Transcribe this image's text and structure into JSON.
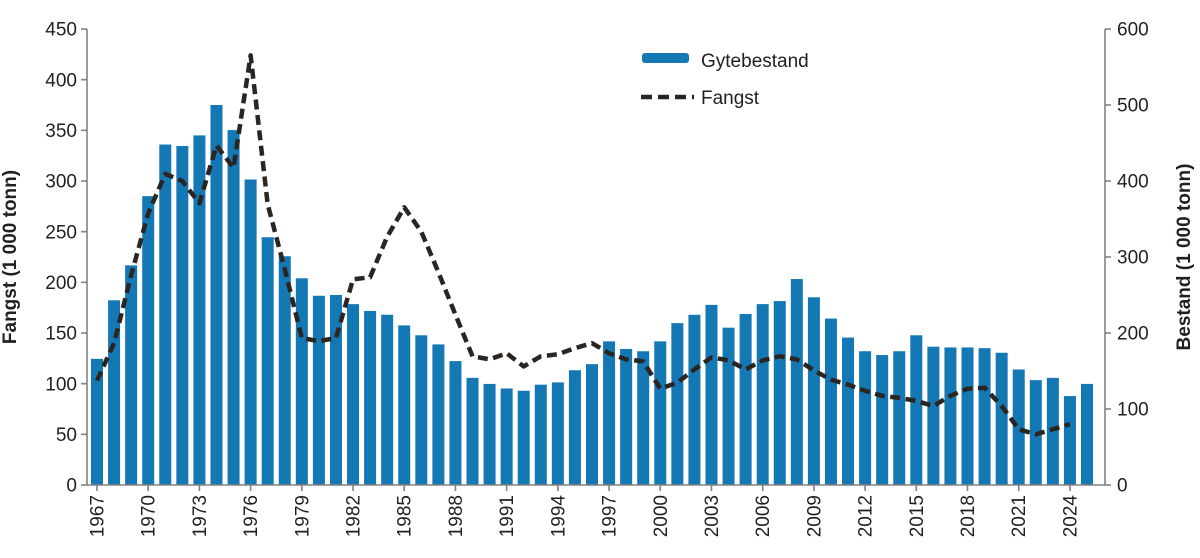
{
  "figure": {
    "legend": {
      "bar_label": "Gytebestand",
      "line_label": "Fangst"
    },
    "left_axis_title": "Fangst (1 000 tonn)",
    "right_axis_title": "Bestand (1 000 tonn)"
  },
  "colors": {
    "bar": "#1478b4",
    "line": "#2b2521",
    "axis": "#808285",
    "text": "#231f20"
  },
  "chart_data": {
    "type": "bar+line",
    "title": "",
    "x_years": [
      1967,
      1968,
      1969,
      1970,
      1971,
      1972,
      1973,
      1974,
      1975,
      1976,
      1977,
      1978,
      1979,
      1980,
      1981,
      1982,
      1983,
      1984,
      1985,
      1986,
      1987,
      1988,
      1989,
      1990,
      1991,
      1992,
      1993,
      1994,
      1995,
      1996,
      1997,
      1998,
      1999,
      2000,
      2001,
      2002,
      2003,
      2004,
      2005,
      2006,
      2007,
      2008,
      2009,
      2010,
      2011,
      2012,
      2013,
      2014,
      2015,
      2016,
      2017,
      2018,
      2019,
      2020,
      2021,
      2022,
      2023,
      2024,
      2025
    ],
    "series": [
      {
        "name": "Gytebestand",
        "type": "bar",
        "axis": "right",
        "values": [
          166,
          243,
          289,
          380,
          448,
          446,
          460,
          500,
          467,
          402,
          326,
          301,
          272,
          249,
          250,
          238,
          229,
          224,
          210,
          197,
          185,
          163,
          141,
          133,
          127,
          124,
          132,
          135,
          151,
          159,
          189,
          179,
          176,
          189,
          213,
          224,
          237,
          207,
          225,
          238,
          242,
          271,
          247,
          219,
          194,
          176,
          171,
          176,
          197,
          182,
          181,
          181,
          180,
          174,
          152,
          138,
          141,
          117,
          133
        ]
      },
      {
        "name": "Fangst",
        "type": "line",
        "dashed": true,
        "axis": "left",
        "values": [
          103,
          140,
          207,
          268,
          307,
          300,
          278,
          335,
          313,
          424,
          277,
          213,
          145,
          142,
          145,
          203,
          205,
          245,
          274,
          250,
          210,
          168,
          127,
          124,
          130,
          117,
          127,
          129,
          135,
          140,
          130,
          124,
          122,
          95,
          101,
          114,
          126,
          123,
          114,
          123,
          127,
          124,
          113,
          104,
          99,
          93,
          88,
          86,
          83,
          78,
          88,
          95,
          96,
          78,
          55,
          50,
          55,
          60,
          null
        ]
      }
    ],
    "left_axis": {
      "title": "Fangst (1 000 tonn)",
      "min": 0,
      "max": 450,
      "step": 50,
      "tick_labels": [
        "0",
        "50",
        "100",
        "150",
        "200",
        "250",
        "300",
        "350",
        "400",
        "450"
      ]
    },
    "right_axis": {
      "title": "Bestand (1 000 tonn)",
      "min": 0,
      "max": 600,
      "step": 100,
      "tick_labels": [
        "0",
        "100",
        "200",
        "300",
        "400",
        "500",
        "600"
      ]
    },
    "x_axis": {
      "label_every": 3,
      "tick_labels": [
        "1967",
        "1970",
        "1973",
        "1976",
        "1979",
        "1982",
        "1985",
        "1988",
        "1991",
        "1994",
        "1997",
        "2000",
        "2003",
        "2006",
        "2009",
        "2012",
        "2015",
        "2018",
        "2021",
        "2024"
      ]
    },
    "legend_position": "top-center",
    "grid": false
  }
}
